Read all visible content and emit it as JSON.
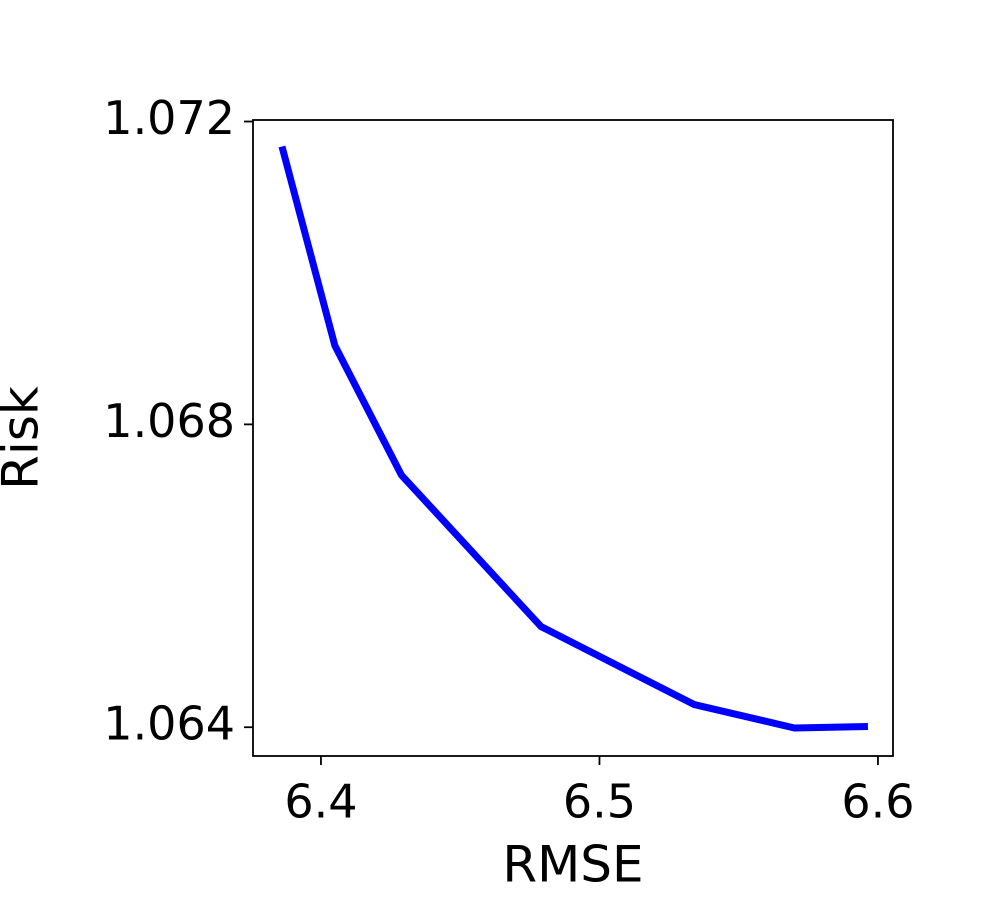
{
  "chart_data": {
    "type": "line",
    "x_label": "RMSE",
    "y_label": "Risk",
    "x": [
      6.386,
      6.405,
      6.4289,
      6.479,
      6.534,
      6.57,
      6.5964
    ],
    "series": [
      {
        "color": "#0000ff",
        "values": [
          1.07167,
          1.06904,
          1.06733,
          1.06533,
          1.0643,
          1.06399,
          1.06401
        ]
      }
    ],
    "xlim": [
      6.3756,
      6.6054
    ],
    "xticks": [
      6.4,
      6.5,
      6.6
    ],
    "ylim": [
      1.06362,
      1.07202
    ],
    "yticks": [
      1.064,
      1.068,
      1.072
    ]
  }
}
